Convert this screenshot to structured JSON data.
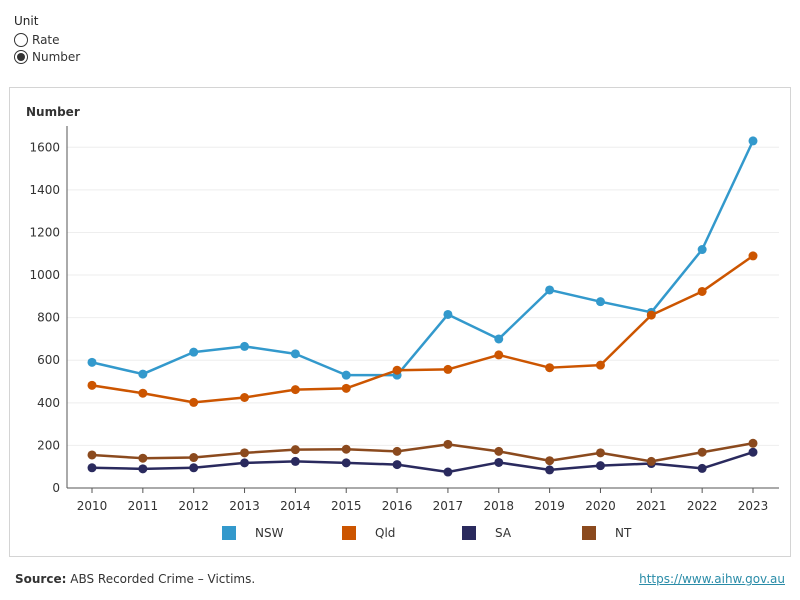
{
  "unit_selector": {
    "title": "Unit",
    "options": [
      {
        "label": "Rate",
        "selected": false
      },
      {
        "label": "Number",
        "selected": true
      }
    ]
  },
  "footer": {
    "source_label": "Source:",
    "source_text": "ABS Recorded Crime – Victims.",
    "link_text": "https://www.aihw.gov.au"
  },
  "chart_data": {
    "type": "line",
    "title": "",
    "ylabel": "Number",
    "xlabel": "",
    "categories": [
      "2010",
      "2011",
      "2012",
      "2013",
      "2014",
      "2015",
      "2016",
      "2017",
      "2018",
      "2019",
      "2020",
      "2021",
      "2022",
      "2023"
    ],
    "yticks": [
      0,
      200,
      400,
      600,
      800,
      1000,
      1200,
      1400,
      1600
    ],
    "ylim": [
      0,
      1700
    ],
    "grid": true,
    "legend_position": "bottom",
    "series": [
      {
        "name": "NSW",
        "color": "#3399cc",
        "values": [
          590,
          535,
          638,
          665,
          630,
          530,
          530,
          815,
          700,
          930,
          875,
          825,
          1120,
          1630
        ]
      },
      {
        "name": "Qld",
        "color": "#cc5500",
        "values": [
          482,
          445,
          402,
          425,
          462,
          468,
          553,
          557,
          625,
          565,
          577,
          812,
          923,
          1090
        ]
      },
      {
        "name": "SA",
        "color": "#2a2a5e",
        "values": [
          95,
          90,
          95,
          118,
          125,
          118,
          110,
          75,
          120,
          85,
          105,
          115,
          92,
          168
        ]
      },
      {
        "name": "NT",
        "color": "#8b4a1e",
        "values": [
          155,
          140,
          143,
          165,
          180,
          182,
          172,
          205,
          172,
          128,
          165,
          125,
          168,
          210
        ]
      }
    ]
  }
}
